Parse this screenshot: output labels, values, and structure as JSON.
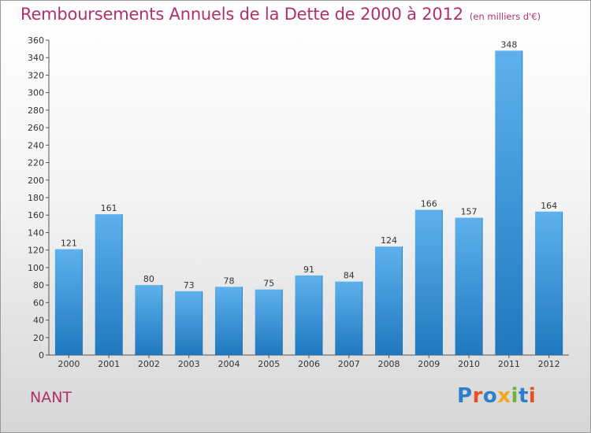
{
  "header": {
    "title": "Remboursements Annuels de la Dette de 2000 à 2012",
    "subtitle": "(en milliers d'€)"
  },
  "footer": {
    "commune": "NANT",
    "logo_text": "Proxiti"
  },
  "colors": {
    "title": "#b0306a",
    "bar_top": "#5eb1ec",
    "bar_bottom": "#1f78be",
    "logo": [
      "#2d7fc9",
      "#e8502a",
      "#2d7fc9",
      "#f5a623",
      "#6db33f",
      "#2d7fc9",
      "#e8502a"
    ]
  },
  "chart_data": {
    "type": "bar",
    "title": "Remboursements Annuels de la Dette de 2000 à 2012",
    "subtitle": "(en milliers d'€)",
    "categories": [
      "2000",
      "2001",
      "2002",
      "2003",
      "2004",
      "2005",
      "2006",
      "2007",
      "2008",
      "2009",
      "2010",
      "2011",
      "2012"
    ],
    "values": [
      121,
      161,
      80,
      73,
      78,
      75,
      91,
      84,
      124,
      166,
      157,
      348,
      164
    ],
    "ylim": [
      0,
      360
    ],
    "yticks": [
      0,
      20,
      40,
      60,
      80,
      100,
      120,
      140,
      160,
      180,
      200,
      220,
      240,
      260,
      280,
      300,
      320,
      340,
      360
    ],
    "grid": false,
    "legend": "none"
  }
}
